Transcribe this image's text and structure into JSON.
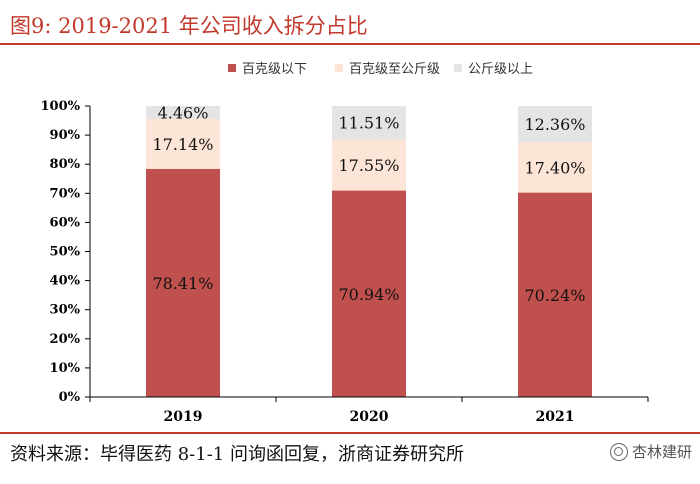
{
  "figure_title": "图9:    2019-2021 年公司收入拆分占比",
  "source": "资料来源：毕得医药 8-1-1 问询函回复，浙商证券研究所",
  "watermark": "杏林建研",
  "chart_data": {
    "type": "bar",
    "stacked": true,
    "categories": [
      "2019",
      "2020",
      "2021"
    ],
    "series": [
      {
        "name": "百克级以下",
        "values": [
          78.41,
          70.94,
          70.24
        ],
        "labels": [
          "78.41%",
          "70.94%",
          "70.24%"
        ],
        "color": "#c0504d"
      },
      {
        "name": "百克级至公斤级",
        "values": [
          17.14,
          17.55,
          17.4
        ],
        "labels": [
          "17.14%",
          "17.55%",
          "17.40%"
        ],
        "color": "#fce4d6"
      },
      {
        "name": "公斤级以上",
        "values": [
          4.46,
          11.51,
          12.36
        ],
        "labels": [
          "4.46%",
          "11.51%",
          "12.36%"
        ],
        "color": "#e4e4e4"
      }
    ],
    "ylim": [
      0,
      100
    ],
    "yticks": [
      "0%",
      "10%",
      "20%",
      "30%",
      "40%",
      "50%",
      "60%",
      "70%",
      "80%",
      "90%",
      "100%"
    ],
    "legend_position": "top"
  }
}
